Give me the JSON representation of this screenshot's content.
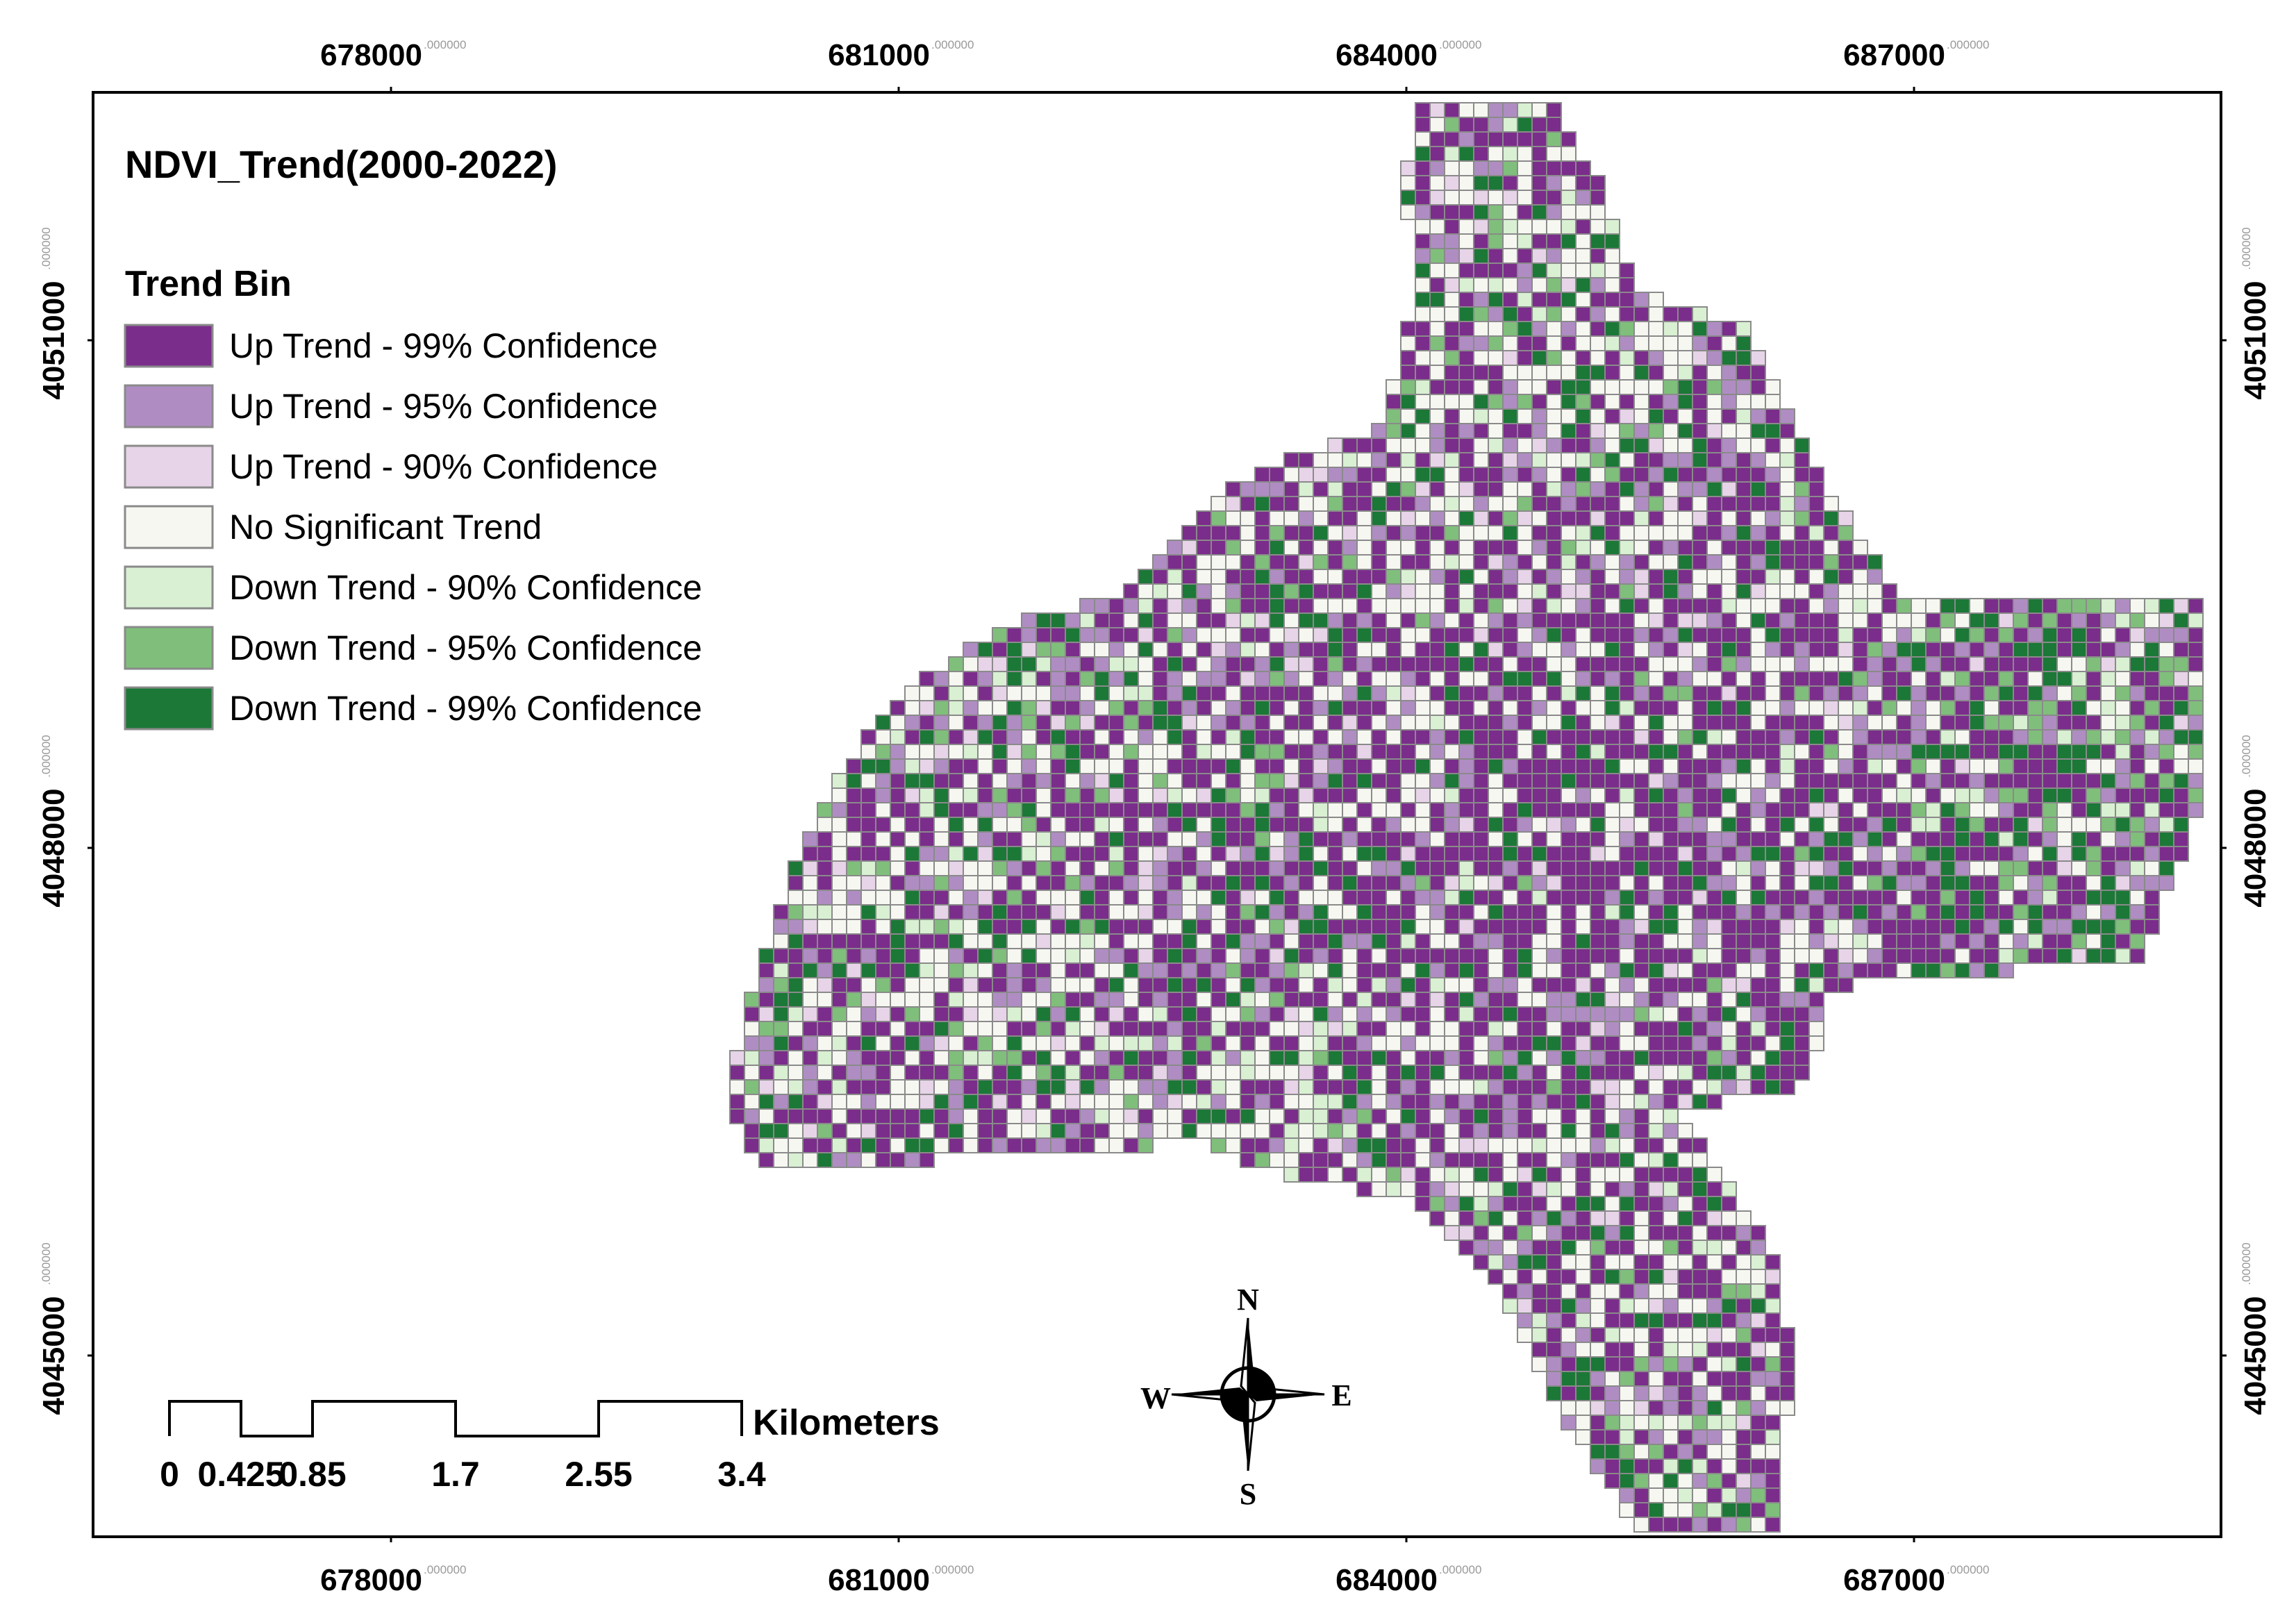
{
  "map": {
    "title": "NDVI_Trend(2000-2022)",
    "legend": {
      "heading": "Trend Bin",
      "items": [
        {
          "label": "Up Trend - 99% Confidence",
          "color": "#7b2d8b"
        },
        {
          "label": "Up Trend - 95% Confidence",
          "color": "#af8dc3"
        },
        {
          "label": "Up Trend - 90% Confidence",
          "color": "#e7d4e8"
        },
        {
          "label": "No Significant Trend",
          "color": "#f7f7f2"
        },
        {
          "label": "Down Trend - 90% Confidence",
          "color": "#d9f0d3"
        },
        {
          "label": "Down Trend - 95% Confidence",
          "color": "#7fbf7b"
        },
        {
          "label": "Down Trend - 99% Confidence",
          "color": "#1b7837"
        }
      ]
    },
    "x_ticks": [
      {
        "main": "678000",
        "suffix": ".000000"
      },
      {
        "main": "681000",
        "suffix": ".000000"
      },
      {
        "main": "684000",
        "suffix": ".000000"
      },
      {
        "main": "687000",
        "suffix": ".000000"
      }
    ],
    "y_ticks": [
      {
        "main": "4051000",
        "suffix": ".000000"
      },
      {
        "main": "4048000",
        "suffix": ".000000"
      },
      {
        "main": "4045000",
        "suffix": ".000000"
      }
    ],
    "scale_bar": {
      "unit": "Kilometers",
      "labels": [
        "0",
        "0.425",
        "0.85",
        "1.7",
        "2.55",
        "3.4"
      ]
    },
    "north_arrow": {
      "n": "N",
      "s": "S",
      "e": "E",
      "w": "W"
    },
    "cell_outline_color": "#8a8a8a"
  }
}
